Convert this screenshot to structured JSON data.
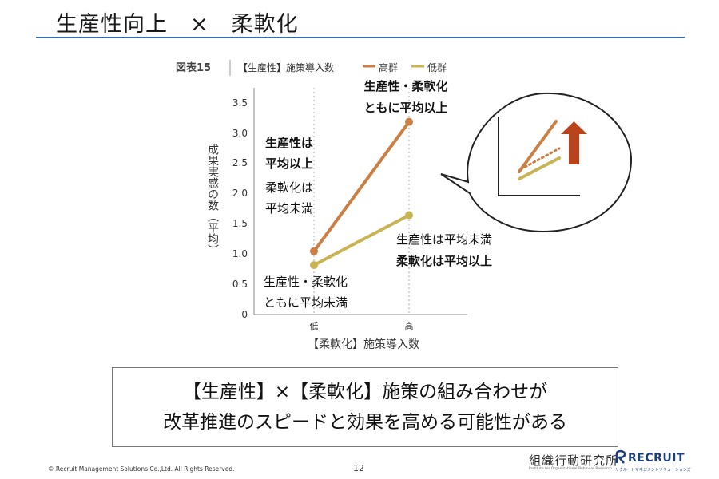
{
  "slide": {
    "title": "生産性向上　×　柔軟化",
    "message": {
      "line1": "【生産性】×【柔軟化】施策の組み合わせが",
      "line2": "改革推進のスピードと効果を高める可能性がある"
    },
    "footer": {
      "copyright": "© Recruit Management Solutions Co.,Ltd. All Rights Reserved.",
      "page_number": "12",
      "logo_institute": "組織行動研究所",
      "logo_institute_sub": "Institute for Organizational Behavior Research",
      "logo_company": "RECRUIT",
      "logo_company_sub": "リクルートマネジメントソリューションズ"
    }
  },
  "chart_data": {
    "type": "line",
    "figure_label": "図表15",
    "title": "【生産性】施策導入数",
    "categories": [
      "低",
      "高"
    ],
    "xlabel": "【柔軟化】施策導入数",
    "ylabel": "成果実感の数（平均）",
    "ylim": [
      0,
      3.5
    ],
    "yticks": [
      "0",
      "0.5",
      "1.0",
      "1.5",
      "2.0",
      "2.5",
      "3.0",
      "3.5"
    ],
    "series": [
      {
        "name": "高群",
        "values": [
          1.05,
          3.2
        ],
        "color": "#cc7f45"
      },
      {
        "name": "低群",
        "values": [
          0.82,
          1.65
        ],
        "color": "#c8b452"
      }
    ],
    "annotations": {
      "high_high_1": "生産性・柔軟化",
      "high_high_2": "ともに平均以上",
      "high_low_1": "生産性は",
      "high_low_2": "平均以上",
      "high_low_3": "柔軟化は",
      "high_low_4": "平均未満",
      "low_low_1": "生産性・柔軟化",
      "low_low_2": "ともに平均未満",
      "low_high_1": "生産性は平均未満",
      "low_high_2": "柔軟化は平均以上"
    },
    "grid": false,
    "legend": "top"
  }
}
